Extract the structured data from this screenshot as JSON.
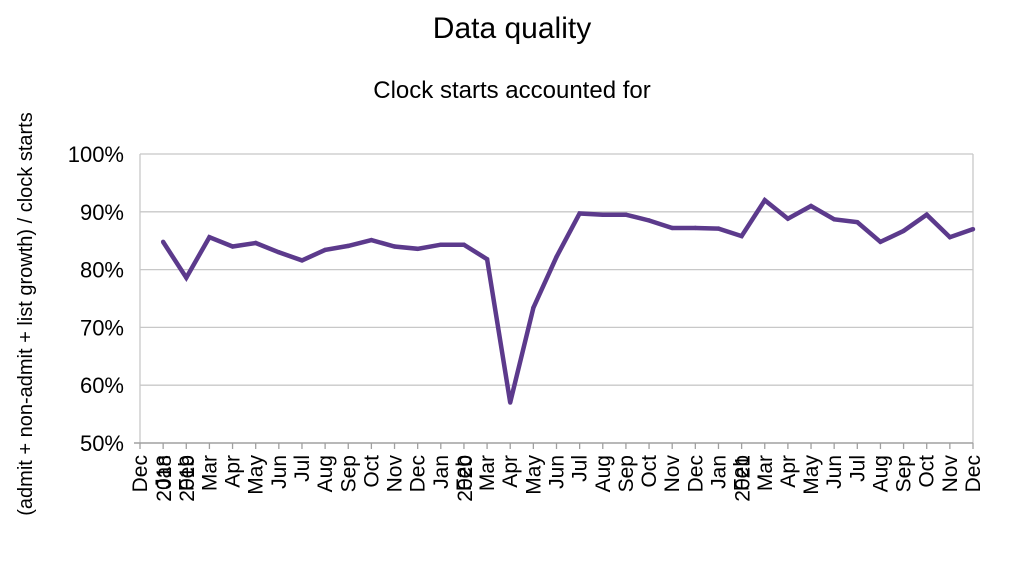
{
  "chart_data": {
    "type": "line",
    "title": "Data quality",
    "subtitle": "Clock starts accounted for",
    "ylabel": "(admit + non-admit + list growth) / clock starts",
    "xlabel": "",
    "ylim": [
      0.5,
      1.0
    ],
    "yticks": [
      "50%",
      "60%",
      "70%",
      "80%",
      "90%",
      "100%"
    ],
    "grid": true,
    "legend": "none",
    "line_color": "#5c3a8c",
    "x": [
      "Dec 2018",
      "Jan 2019",
      "Feb",
      "Mar",
      "Apr",
      "May",
      "Jun",
      "Jul",
      "Aug",
      "Sep",
      "Oct",
      "Nov",
      "Dec",
      "Jan 2020",
      "Feb",
      "Mar",
      "Apr",
      "May",
      "Jun",
      "Jul",
      "Aug",
      "Sep",
      "Oct",
      "Nov",
      "Dec",
      "Jan 2021",
      "Feb",
      "Mar",
      "Apr",
      "May",
      "Jun",
      "Jul",
      "Aug",
      "Sep",
      "Oct",
      "Nov",
      "Dec"
    ],
    "series": [
      {
        "values": [
          null,
          0.848,
          0.786,
          0.856,
          0.84,
          0.846,
          0.83,
          0.816,
          0.834,
          0.841,
          0.851,
          0.84,
          0.836,
          0.843,
          0.843,
          0.818,
          0.57,
          0.734,
          0.822,
          0.897,
          0.895,
          0.895,
          0.885,
          0.872,
          0.872,
          0.871,
          0.858,
          0.92,
          0.888,
          0.91,
          0.887,
          0.882,
          0.848,
          0.867,
          0.895,
          0.856,
          0.87
        ]
      }
    ]
  }
}
